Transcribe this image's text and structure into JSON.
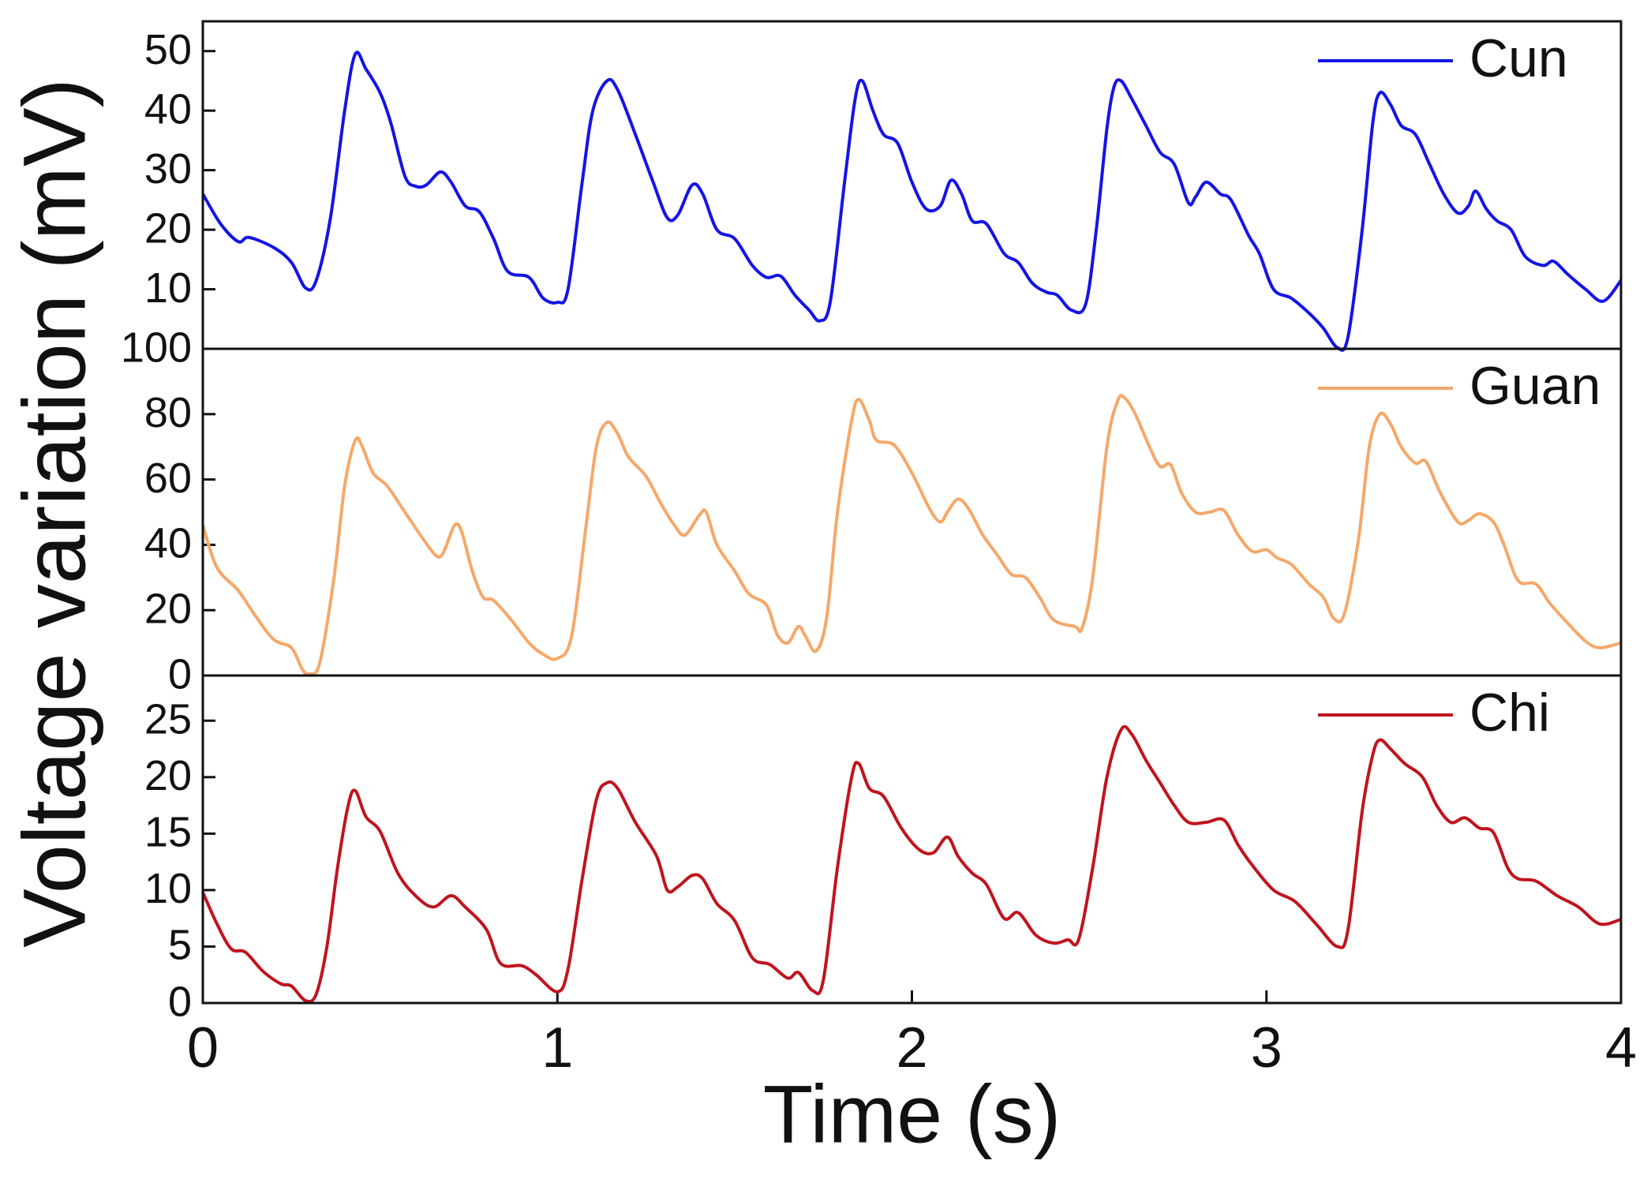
{
  "chart_data": [
    {
      "type": "line",
      "xlim": [
        0,
        4
      ],
      "ylim": [
        0,
        55
      ],
      "yticks": [
        10,
        20,
        30,
        40,
        50
      ],
      "legend": "upper right",
      "x": [
        0,
        0.05,
        0.1,
        0.13,
        0.2,
        0.25,
        0.29,
        0.32,
        0.36,
        0.4,
        0.43,
        0.46,
        0.5,
        0.53,
        0.57,
        0.6,
        0.63,
        0.67,
        0.7,
        0.74,
        0.78,
        0.82,
        0.86,
        0.92,
        0.96,
        1.0,
        1.03,
        1.07,
        1.1,
        1.14,
        1.17,
        1.22,
        1.27,
        1.31,
        1.34,
        1.38,
        1.41,
        1.45,
        1.5,
        1.55,
        1.59,
        1.63,
        1.67,
        1.71,
        1.74,
        1.77,
        1.81,
        1.84,
        1.86,
        1.89,
        1.92,
        1.96,
        2.0,
        2.04,
        2.08,
        2.11,
        2.14,
        2.17,
        2.21,
        2.26,
        2.3,
        2.34,
        2.38,
        2.41,
        2.45,
        2.49,
        2.52,
        2.55,
        2.57,
        2.59,
        2.62,
        2.66,
        2.7,
        2.74,
        2.78,
        2.8,
        2.83,
        2.87,
        2.9,
        2.95,
        2.98,
        3.02,
        3.07,
        3.12,
        3.16,
        3.2,
        3.23,
        3.27,
        3.3,
        3.32,
        3.35,
        3.38,
        3.42,
        3.46,
        3.5,
        3.54,
        3.57,
        3.59,
        3.62,
        3.65,
        3.69,
        3.73,
        3.78,
        3.81,
        3.85,
        3.9,
        3.95,
        4.0
      ],
      "series": [
        {
          "name": "Cun",
          "color": "#1414e6",
          "values": [
            26,
            21,
            18,
            18.7,
            17,
            14.5,
            10.2,
            11.5,
            22,
            40,
            49.5,
            47,
            43,
            38,
            29,
            27.3,
            27.5,
            29.7,
            28,
            24,
            23,
            18.5,
            13,
            12,
            8.5,
            7.8,
            10,
            28,
            40,
            45,
            43.5,
            36,
            28,
            22,
            22.5,
            27.5,
            26,
            20,
            18.5,
            14,
            12,
            12.2,
            9,
            6.5,
            4.7,
            8,
            28,
            42,
            45,
            40,
            36,
            34.5,
            28,
            23.5,
            24,
            28.3,
            26,
            21.5,
            21,
            16,
            14.5,
            11,
            9.5,
            9,
            6.5,
            7.5,
            20,
            37,
            44,
            45,
            42,
            37.5,
            33,
            31,
            24.5,
            25.5,
            28,
            26,
            25,
            19,
            16,
            10,
            8.5,
            6,
            3.5,
            0.2,
            2,
            20,
            38,
            43,
            41,
            37.5,
            36,
            31,
            26,
            22.8,
            24,
            26.5,
            23.5,
            21.5,
            20,
            15.5,
            14,
            14.7,
            12.5,
            10,
            8,
            11.5
          ]
        }
      ]
    },
    {
      "type": "line",
      "ylabel": "Voltage variation (mV)",
      "xlim": [
        0,
        4
      ],
      "ylim": [
        0,
        100
      ],
      "yticks": [
        0,
        20,
        40,
        60,
        80,
        100
      ],
      "legend": "upper right",
      "x": [
        0,
        0.04,
        0.1,
        0.15,
        0.2,
        0.25,
        0.28,
        0.3,
        0.33,
        0.37,
        0.4,
        0.43,
        0.45,
        0.48,
        0.52,
        0.57,
        0.62,
        0.66,
        0.68,
        0.71,
        0.73,
        0.76,
        0.79,
        0.82,
        0.87,
        0.92,
        0.96,
        1.0,
        1.04,
        1.08,
        1.11,
        1.14,
        1.17,
        1.2,
        1.25,
        1.29,
        1.33,
        1.36,
        1.4,
        1.42,
        1.45,
        1.5,
        1.54,
        1.59,
        1.62,
        1.65,
        1.68,
        1.7,
        1.73,
        1.76,
        1.79,
        1.83,
        1.85,
        1.88,
        1.9,
        1.95,
        2.0,
        2.05,
        2.08,
        2.1,
        2.13,
        2.16,
        2.2,
        2.24,
        2.28,
        2.32,
        2.36,
        2.4,
        2.46,
        2.48,
        2.51,
        2.55,
        2.58,
        2.6,
        2.63,
        2.67,
        2.7,
        2.73,
        2.76,
        2.8,
        2.84,
        2.88,
        2.92,
        2.96,
        3.0,
        3.03,
        3.07,
        3.12,
        3.16,
        3.19,
        3.22,
        3.26,
        3.29,
        3.32,
        3.35,
        3.38,
        3.42,
        3.45,
        3.49,
        3.54,
        3.57,
        3.6,
        3.64,
        3.67,
        3.71,
        3.76,
        3.8,
        3.85,
        3.9,
        3.94,
        4.0
      ],
      "series": [
        {
          "name": "Guan",
          "color": "#f5a86a",
          "values": [
            46,
            33,
            26,
            18,
            11,
            8.5,
            2,
            0.5,
            4,
            30,
            58,
            72,
            70,
            62,
            58,
            50,
            42,
            36.5,
            38,
            46,
            44,
            32,
            24,
            23,
            17,
            10,
            6.5,
            5.2,
            12,
            45,
            70,
            77.5,
            74,
            67,
            61,
            53,
            46,
            43,
            49,
            50,
            40,
            32,
            25,
            21.5,
            12.5,
            10,
            15,
            12,
            7.5,
            18,
            50,
            78,
            84.5,
            78,
            72,
            70.5,
            62,
            51,
            47,
            50,
            54,
            51,
            43,
            37,
            31,
            30,
            24,
            17,
            15,
            14.5,
            30,
            70,
            84,
            85,
            80,
            70,
            64,
            64.5,
            56,
            50,
            50,
            50.5,
            43,
            38,
            38.5,
            36,
            34,
            28,
            24,
            17.5,
            19,
            42,
            70,
            80,
            77,
            70,
            65,
            65.5,
            56,
            47,
            47.5,
            49.5,
            47,
            40,
            29,
            28,
            22,
            16,
            10.5,
            8.5,
            10
          ]
        }
      ]
    },
    {
      "type": "line",
      "xlabel": "Time (s)",
      "xlim": [
        0,
        4
      ],
      "xticks": [
        0,
        1,
        2,
        3,
        4
      ],
      "ylim": [
        0,
        29
      ],
      "yticks": [
        0,
        5,
        10,
        15,
        20,
        25
      ],
      "legend": "upper right",
      "x": [
        0,
        0.04,
        0.08,
        0.12,
        0.17,
        0.22,
        0.25,
        0.29,
        0.32,
        0.35,
        0.38,
        0.41,
        0.43,
        0.46,
        0.5,
        0.55,
        0.6,
        0.65,
        0.7,
        0.74,
        0.8,
        0.84,
        0.9,
        0.94,
        1.0,
        1.03,
        1.07,
        1.11,
        1.14,
        1.17,
        1.22,
        1.28,
        1.31,
        1.34,
        1.38,
        1.41,
        1.45,
        1.5,
        1.55,
        1.6,
        1.65,
        1.68,
        1.72,
        1.75,
        1.79,
        1.83,
        1.85,
        1.88,
        1.92,
        1.97,
        2.02,
        2.06,
        2.1,
        2.13,
        2.17,
        2.21,
        2.26,
        2.3,
        2.35,
        2.4,
        2.44,
        2.47,
        2.51,
        2.55,
        2.59,
        2.62,
        2.66,
        2.7,
        2.74,
        2.78,
        2.83,
        2.88,
        2.92,
        2.96,
        3.02,
        3.08,
        3.14,
        3.2,
        3.23,
        3.27,
        3.3,
        3.32,
        3.35,
        3.39,
        3.44,
        3.48,
        3.52,
        3.56,
        3.6,
        3.64,
        3.68,
        3.71,
        3.76,
        3.82,
        3.88,
        3.94,
        4.0
      ],
      "series": [
        {
          "name": "Chi",
          "color": "#c0141e",
          "values": [
            9.8,
            7,
            4.8,
            4.5,
            2.8,
            1.7,
            1.5,
            0.2,
            0.8,
            5,
            12,
            17.5,
            18.8,
            16.5,
            15.2,
            11.5,
            9.5,
            8.5,
            9.5,
            8.5,
            6.5,
            3.5,
            3.3,
            2.5,
            1,
            3,
            11,
            18,
            19.5,
            19,
            16,
            13,
            10,
            10.3,
            11.3,
            11,
            8.8,
            7.3,
            4,
            3.4,
            2.2,
            2.7,
            1.1,
            2,
            12,
            20,
            21.2,
            19,
            18.3,
            15.5,
            13.6,
            13.3,
            14.7,
            13,
            11.5,
            10.5,
            7.5,
            8,
            6,
            5.3,
            5.6,
            5.6,
            12,
            20,
            24.2,
            23.8,
            21.5,
            19.5,
            17.5,
            16,
            16,
            16.2,
            14,
            12.2,
            10,
            9,
            7,
            5,
            6.5,
            17,
            22,
            23.3,
            22.5,
            21.2,
            20,
            17.5,
            16,
            16.4,
            15.5,
            15.1,
            12,
            11,
            10.8,
            9.5,
            8.5,
            7,
            7.4
          ]
        }
      ]
    }
  ]
}
